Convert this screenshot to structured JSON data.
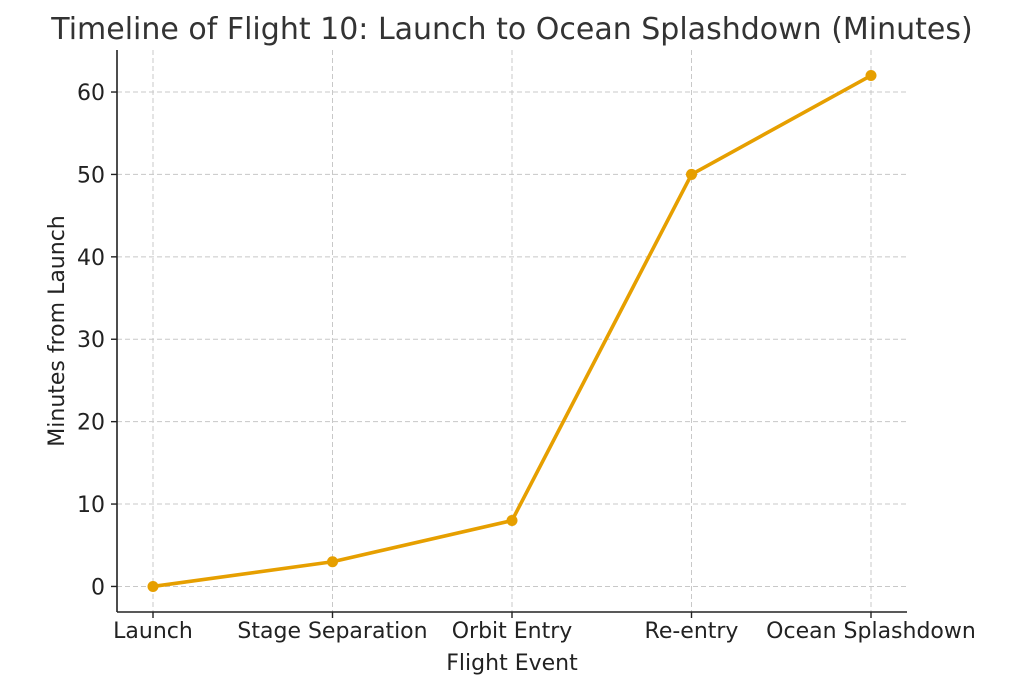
{
  "chart_data": {
    "type": "line",
    "title": "Timeline of Flight 10: Launch to Ocean Splashdown (Minutes)",
    "xlabel": "Flight Event",
    "ylabel": "Minutes from Launch",
    "categories": [
      "Launch",
      "Stage Separation",
      "Orbit Entry",
      "Re-entry",
      "Ocean Splashdown"
    ],
    "series": [
      {
        "values": [
          0,
          3,
          8,
          50,
          62
        ],
        "color": "#E69F00"
      }
    ],
    "yticks": [
      0,
      10,
      20,
      30,
      40,
      50,
      60
    ],
    "ylim": [
      -3.1,
      65.1
    ],
    "grid": true,
    "marker": "circle"
  }
}
